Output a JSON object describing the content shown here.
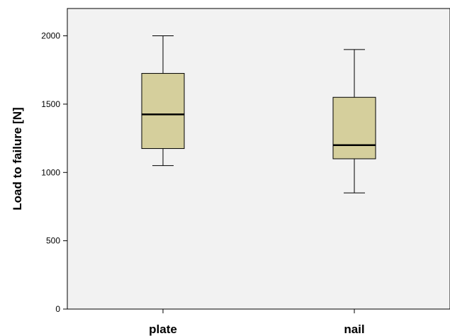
{
  "chart_data": {
    "type": "boxplot",
    "title": "",
    "xlabel": "",
    "ylabel": "Load to failure [N]",
    "ylim": [
      0,
      2200
    ],
    "yticks": [
      0,
      500,
      1000,
      1500,
      2000
    ],
    "grid": false,
    "categories": [
      "plate",
      "nail"
    ],
    "boxes": [
      {
        "category": "plate",
        "min": 1050,
        "q1": 1175,
        "median": 1425,
        "q3": 1725,
        "max": 2000
      },
      {
        "category": "nail",
        "min": 850,
        "q1": 1100,
        "median": 1200,
        "q3": 1550,
        "max": 1900
      }
    ],
    "colors": {
      "plot_background": "#f2f2f2",
      "box_fill": "#d5cf9c",
      "stroke": "#000000"
    }
  }
}
